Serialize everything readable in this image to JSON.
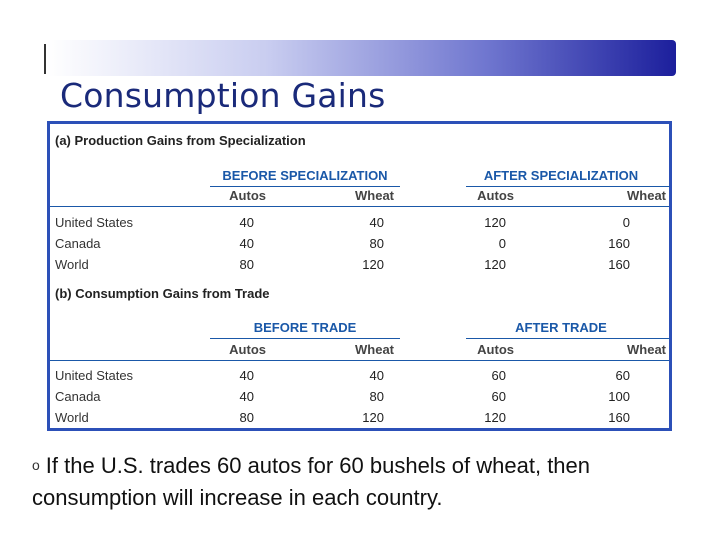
{
  "slide": {
    "title": "Consumption Gains",
    "bullet_marker": "o",
    "bullet_text": "If the U.S. trades 60 autos for 60 bushels of wheat, then consumption will increase in each country."
  },
  "table": {
    "rows": [
      "United States",
      "Canada",
      "World"
    ],
    "col_headers": [
      "Autos",
      "Wheat",
      "Autos",
      "Wheat"
    ],
    "section_a": {
      "title": "(a) Production Gains from Specialization",
      "group_left": "BEFORE SPECIALIZATION",
      "group_right": "AFTER SPECIALIZATION",
      "data": [
        [
          "40",
          "40",
          "120",
          "0"
        ],
        [
          "40",
          "80",
          "0",
          "160"
        ],
        [
          "80",
          "120",
          "120",
          "160"
        ]
      ]
    },
    "section_b": {
      "title": "(b) Consumption Gains from Trade",
      "group_left": "BEFORE TRADE",
      "group_right": "AFTER TRADE",
      "data": [
        [
          "40",
          "40",
          "60",
          "60"
        ],
        [
          "40",
          "80",
          "60",
          "100"
        ],
        [
          "80",
          "120",
          "120",
          "160"
        ]
      ]
    }
  }
}
